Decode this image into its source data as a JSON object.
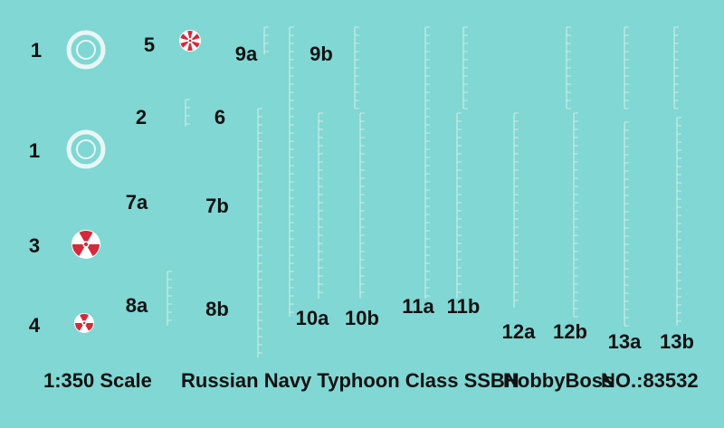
{
  "labels": [
    "1",
    "5",
    "9a",
    "9b",
    "2",
    "6",
    "1",
    "7a",
    "7b",
    "3",
    "8a",
    "8b",
    "10a",
    "10b",
    "11a",
    "11b",
    "4",
    "12a",
    "12b",
    "13a",
    "13b"
  ],
  "footer": {
    "scale": "1:350 Scale",
    "title": "Russian Navy Typhoon Class SSBN",
    "brand": "HobbyBoss",
    "number": "NO.:83532"
  }
}
